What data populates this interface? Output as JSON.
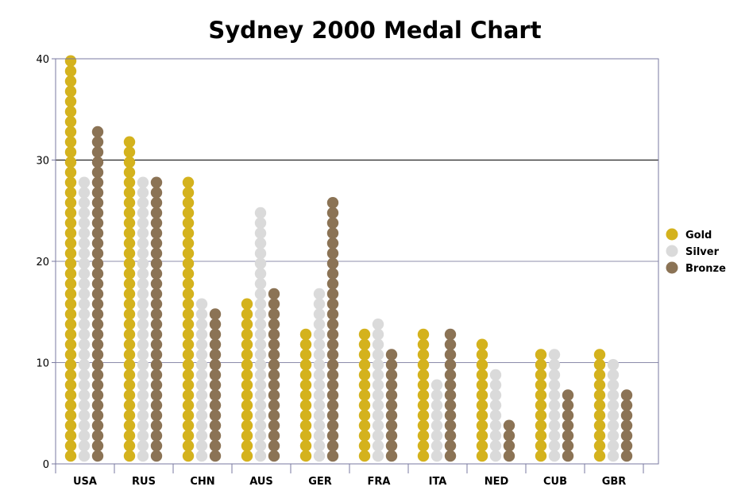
{
  "chart_data": {
    "type": "bar",
    "title": "Sydney 2000 Medal Chart",
    "xlabel": "",
    "ylabel": "",
    "ylim": [
      0,
      40
    ],
    "yticks": [
      0,
      10,
      20,
      30,
      40
    ],
    "grid": true,
    "legend_position": "right",
    "categories": [
      "USA",
      "RUS",
      "CHN",
      "AUS",
      "GER",
      "FRA",
      "ITA",
      "NED",
      "CUB",
      "GBR"
    ],
    "series": [
      {
        "name": "Gold",
        "color": "#D4B21D",
        "values": [
          40,
          32,
          28,
          16,
          13,
          13,
          13,
          12,
          11,
          11
        ]
      },
      {
        "name": "Silver",
        "color": "#DADADA",
        "values": [
          28,
          28,
          16,
          25,
          17,
          14,
          8,
          9,
          11,
          10
        ]
      },
      {
        "name": "Bronze",
        "color": "#8B7355",
        "values": [
          33,
          28,
          15,
          17,
          26,
          11,
          13,
          4,
          7,
          7
        ]
      }
    ]
  }
}
